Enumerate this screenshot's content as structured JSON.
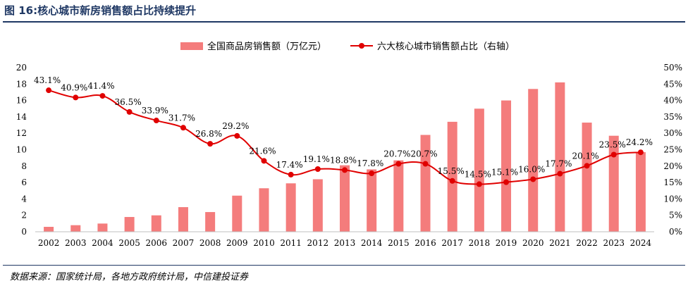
{
  "title": "图 16:核心城市新房销售额占比持续提升",
  "source": "数据来源：国家统计局，各地方政府统计局，中信建投证券",
  "chart_data": {
    "type": "bar+line",
    "categories": [
      "2002",
      "2003",
      "2004",
      "2005",
      "2006",
      "2007",
      "2008",
      "2009",
      "2010",
      "2011",
      "2012",
      "2013",
      "2014",
      "2015",
      "2016",
      "2017",
      "2018",
      "2019",
      "2020",
      "2021",
      "2022",
      "2023",
      "2024"
    ],
    "series": [
      {
        "name": "全国商品房销售额（万亿元）",
        "type": "bar",
        "axis": "left",
        "color": "#f47c7c",
        "values": [
          0.6,
          0.8,
          1.0,
          1.8,
          2.0,
          3.0,
          2.4,
          4.4,
          5.3,
          5.9,
          6.4,
          8.1,
          7.6,
          8.7,
          11.8,
          13.4,
          15.0,
          16.0,
          17.4,
          18.2,
          13.3,
          11.7,
          9.7
        ]
      },
      {
        "name": "六大核心城市销售额占比（右轴）",
        "type": "line",
        "axis": "right",
        "color": "#e00000",
        "values": [
          43.1,
          40.9,
          41.4,
          36.5,
          33.9,
          31.7,
          26.8,
          29.2,
          21.6,
          17.4,
          19.1,
          18.8,
          17.8,
          20.7,
          20.7,
          15.5,
          14.5,
          15.1,
          16.0,
          17.7,
          20.1,
          23.5,
          24.2
        ],
        "labels": [
          "43.1%",
          "40.9%",
          "41.4%",
          "36.5%",
          "33.9%",
          "31.7%",
          "26.8%",
          "29.2%",
          "21.6%",
          "17.4%",
          "19.1%",
          "18.8%",
          "17.8%",
          "20.7%",
          "20.7%",
          "15.5%",
          "14.5%",
          "15.1%",
          "16.0%",
          "17.7%",
          "20.1%",
          "23.5%",
          "24.2%"
        ]
      }
    ],
    "yleft": {
      "min": 0,
      "max": 20,
      "ticks": [
        "0",
        "2",
        "4",
        "6",
        "8",
        "10",
        "12",
        "14",
        "16",
        "18",
        "20"
      ]
    },
    "yright": {
      "min": 0,
      "max": 50,
      "ticks": [
        "0%",
        "5%",
        "10%",
        "15%",
        "20%",
        "25%",
        "30%",
        "35%",
        "40%",
        "45%",
        "50%"
      ]
    },
    "legend": "top-center",
    "grid": false
  }
}
